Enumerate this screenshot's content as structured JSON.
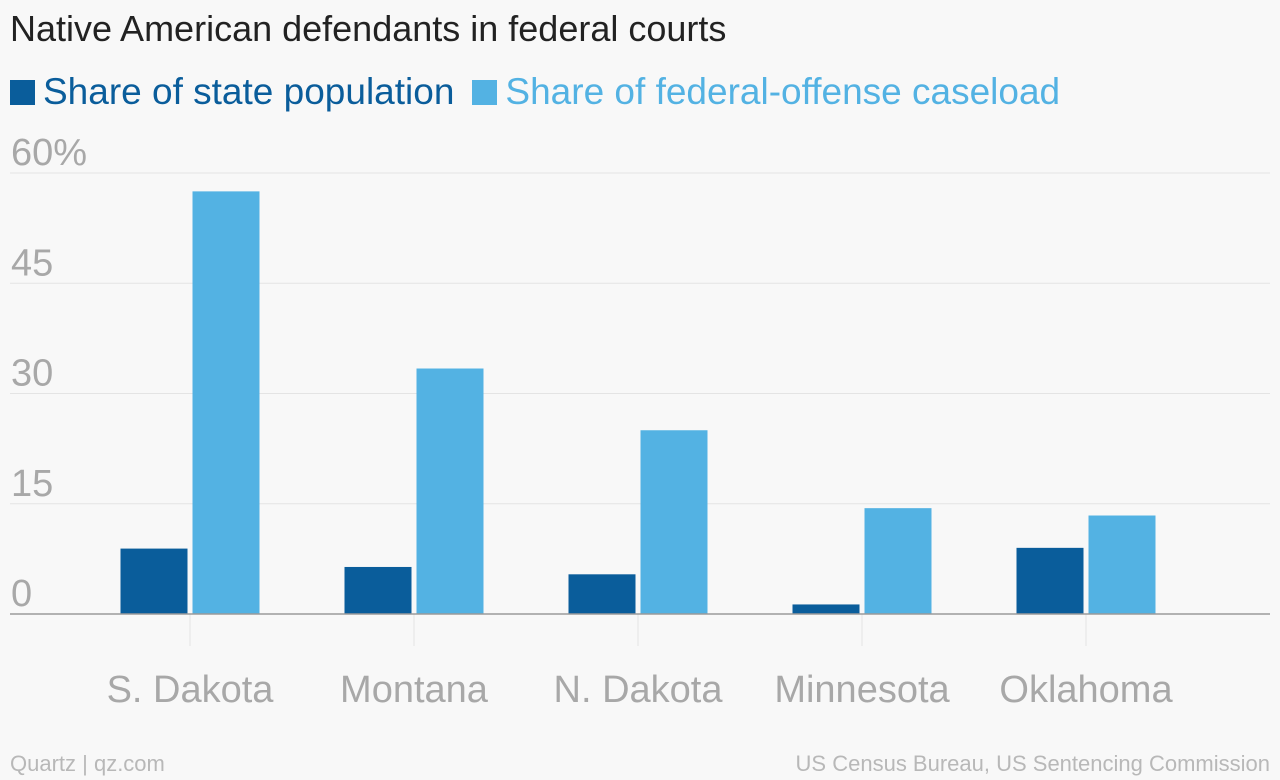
{
  "chart_data": {
    "type": "bar",
    "title": "Native American defendants in federal courts",
    "xlabel": "",
    "ylabel": "",
    "categories": [
      "S. Dakota",
      "Montana",
      "N. Dakota",
      "Minnesota",
      "Oklahoma"
    ],
    "series": [
      {
        "name": "Share of state population",
        "color": "#0a5d9b",
        "values": [
          8.9,
          6.4,
          5.4,
          1.3,
          9.0
        ]
      },
      {
        "name": "Share of federal-offense caseload",
        "color": "#53b2e3",
        "values": [
          57.5,
          33.4,
          25.0,
          14.4,
          13.4
        ]
      }
    ],
    "ylim": [
      0,
      60
    ],
    "yticks": [
      0,
      15,
      30,
      45,
      60
    ],
    "ytick_labels": [
      "0",
      "15",
      "30",
      "45",
      "60%"
    ],
    "grid": true,
    "legend_position": "top-left"
  },
  "footer": {
    "source_left": "Quartz | qz.com",
    "source_right": "US Census Bureau, US Sentencing Commission"
  }
}
